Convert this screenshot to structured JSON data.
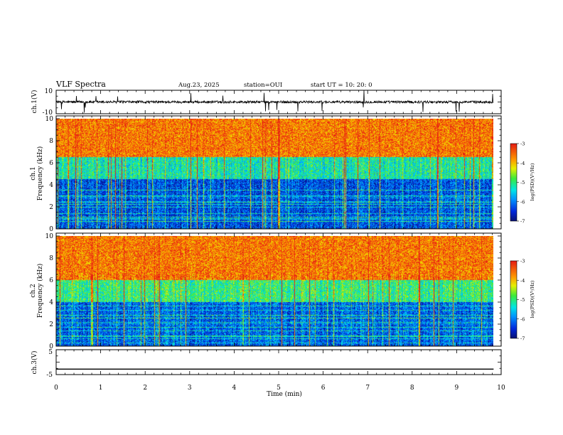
{
  "header": {
    "title": "VLF Spectra",
    "date": "Aug.23, 2025",
    "station": "station=OUI",
    "start": "start  UT  =   10: 20: 0"
  },
  "colors": {
    "background": "#ffffff",
    "axis": "#000000",
    "waveform": "#000000",
    "spectrum_low": "#0a1478",
    "spectrum_high": "#e62814"
  },
  "chart_data": [
    {
      "type": "line",
      "panel": "ch1-waveform",
      "ylabel": "ch.1(V)",
      "ylim": [
        -10,
        10
      ],
      "yticks": [
        "10",
        "-10"
      ],
      "baseline": 0,
      "noise_amplitude": 1.5,
      "x_range": [
        0,
        9.83
      ]
    },
    {
      "type": "heatmap",
      "panel": "ch1-spectrogram",
      "ylabel_channel": "ch.1",
      "ylabel": "Frequency  (kHz)",
      "ylim": [
        0,
        10
      ],
      "yticks": [
        "0",
        "2",
        "4",
        "6",
        "8",
        "10"
      ],
      "x_range": [
        0,
        9.83
      ],
      "description_levels": [
        {
          "freq": [
            0,
            4.5
          ],
          "level": -6.3
        },
        {
          "freq": [
            4.5,
            6.5
          ],
          "level": -5.2
        },
        {
          "freq": [
            6.5,
            10
          ],
          "level": -3.6
        }
      ],
      "colorbar": {
        "label": "log(PSD)(V²/Hz)",
        "ticks": [
          "-3",
          "-4",
          "-5",
          "-6",
          "-7"
        ],
        "range": [
          -7,
          -3
        ]
      }
    },
    {
      "type": "heatmap",
      "panel": "ch2-spectrogram",
      "ylabel_channel": "ch.2",
      "ylabel": "Frequency  (kHz)",
      "ylim": [
        0,
        10
      ],
      "yticks": [
        "0",
        "2",
        "4",
        "6",
        "8",
        "10"
      ],
      "x_range": [
        0,
        9.83
      ],
      "description_levels": [
        {
          "freq": [
            0,
            4.0
          ],
          "level": -6.2
        },
        {
          "freq": [
            4.0,
            6.0
          ],
          "level": -5.0
        },
        {
          "freq": [
            6.0,
            10
          ],
          "level": -3.6
        }
      ],
      "colorbar": {
        "label": "log(PSD)(V²/Hz)",
        "ticks": [
          "-3",
          "-4",
          "-5",
          "-6",
          "-7"
        ],
        "range": [
          -7,
          -3
        ]
      }
    },
    {
      "type": "line",
      "panel": "ch3-waveform",
      "ylabel": "ch.3(V)",
      "ylim": [
        -5,
        5
      ],
      "yticks": [
        "5",
        "-5"
      ],
      "baseline": -2.8,
      "noise_amplitude": 0,
      "x_range": [
        0,
        9.83
      ]
    }
  ],
  "xaxis": {
    "xlabel": "Time  (min)",
    "xlim": [
      0,
      10
    ],
    "ticks": [
      "0",
      "1",
      "2",
      "3",
      "4",
      "5",
      "6",
      "7",
      "8",
      "9",
      "10"
    ]
  }
}
